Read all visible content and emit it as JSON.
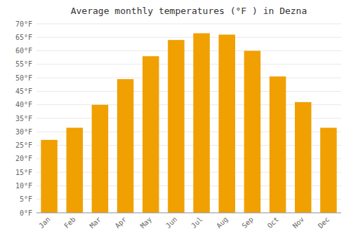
{
  "chart_data": {
    "type": "bar",
    "title": "Average monthly temperatures (°F ) in Dezna",
    "categories": [
      "Jan",
      "Feb",
      "Mar",
      "Apr",
      "May",
      "Jun",
      "Jul",
      "Aug",
      "Sep",
      "Oct",
      "Nov",
      "Dec"
    ],
    "values": [
      27,
      31.5,
      40,
      49.5,
      58,
      64,
      66.5,
      66,
      60,
      50.5,
      41,
      31.5
    ],
    "color": "#F0A000",
    "ylim": [
      0,
      70
    ],
    "yticks": [
      {
        "value": 0,
        "label": "0°F"
      },
      {
        "value": 5,
        "label": "5°F"
      },
      {
        "value": 10,
        "label": "10°F"
      },
      {
        "value": 15,
        "label": "15°F"
      },
      {
        "value": 20,
        "label": "20°F"
      },
      {
        "value": 25,
        "label": "25°F"
      },
      {
        "value": 30,
        "label": "30°F"
      },
      {
        "value": 35,
        "label": "35°F"
      },
      {
        "value": 40,
        "label": "40°F"
      },
      {
        "value": 45,
        "label": "45°F"
      },
      {
        "value": 50,
        "label": "50°F"
      },
      {
        "value": 55,
        "label": "55°F"
      },
      {
        "value": 60,
        "label": "60°F"
      },
      {
        "value": 65,
        "label": "65°F"
      },
      {
        "value": 70,
        "label": "70°F"
      }
    ],
    "grid": true
  }
}
